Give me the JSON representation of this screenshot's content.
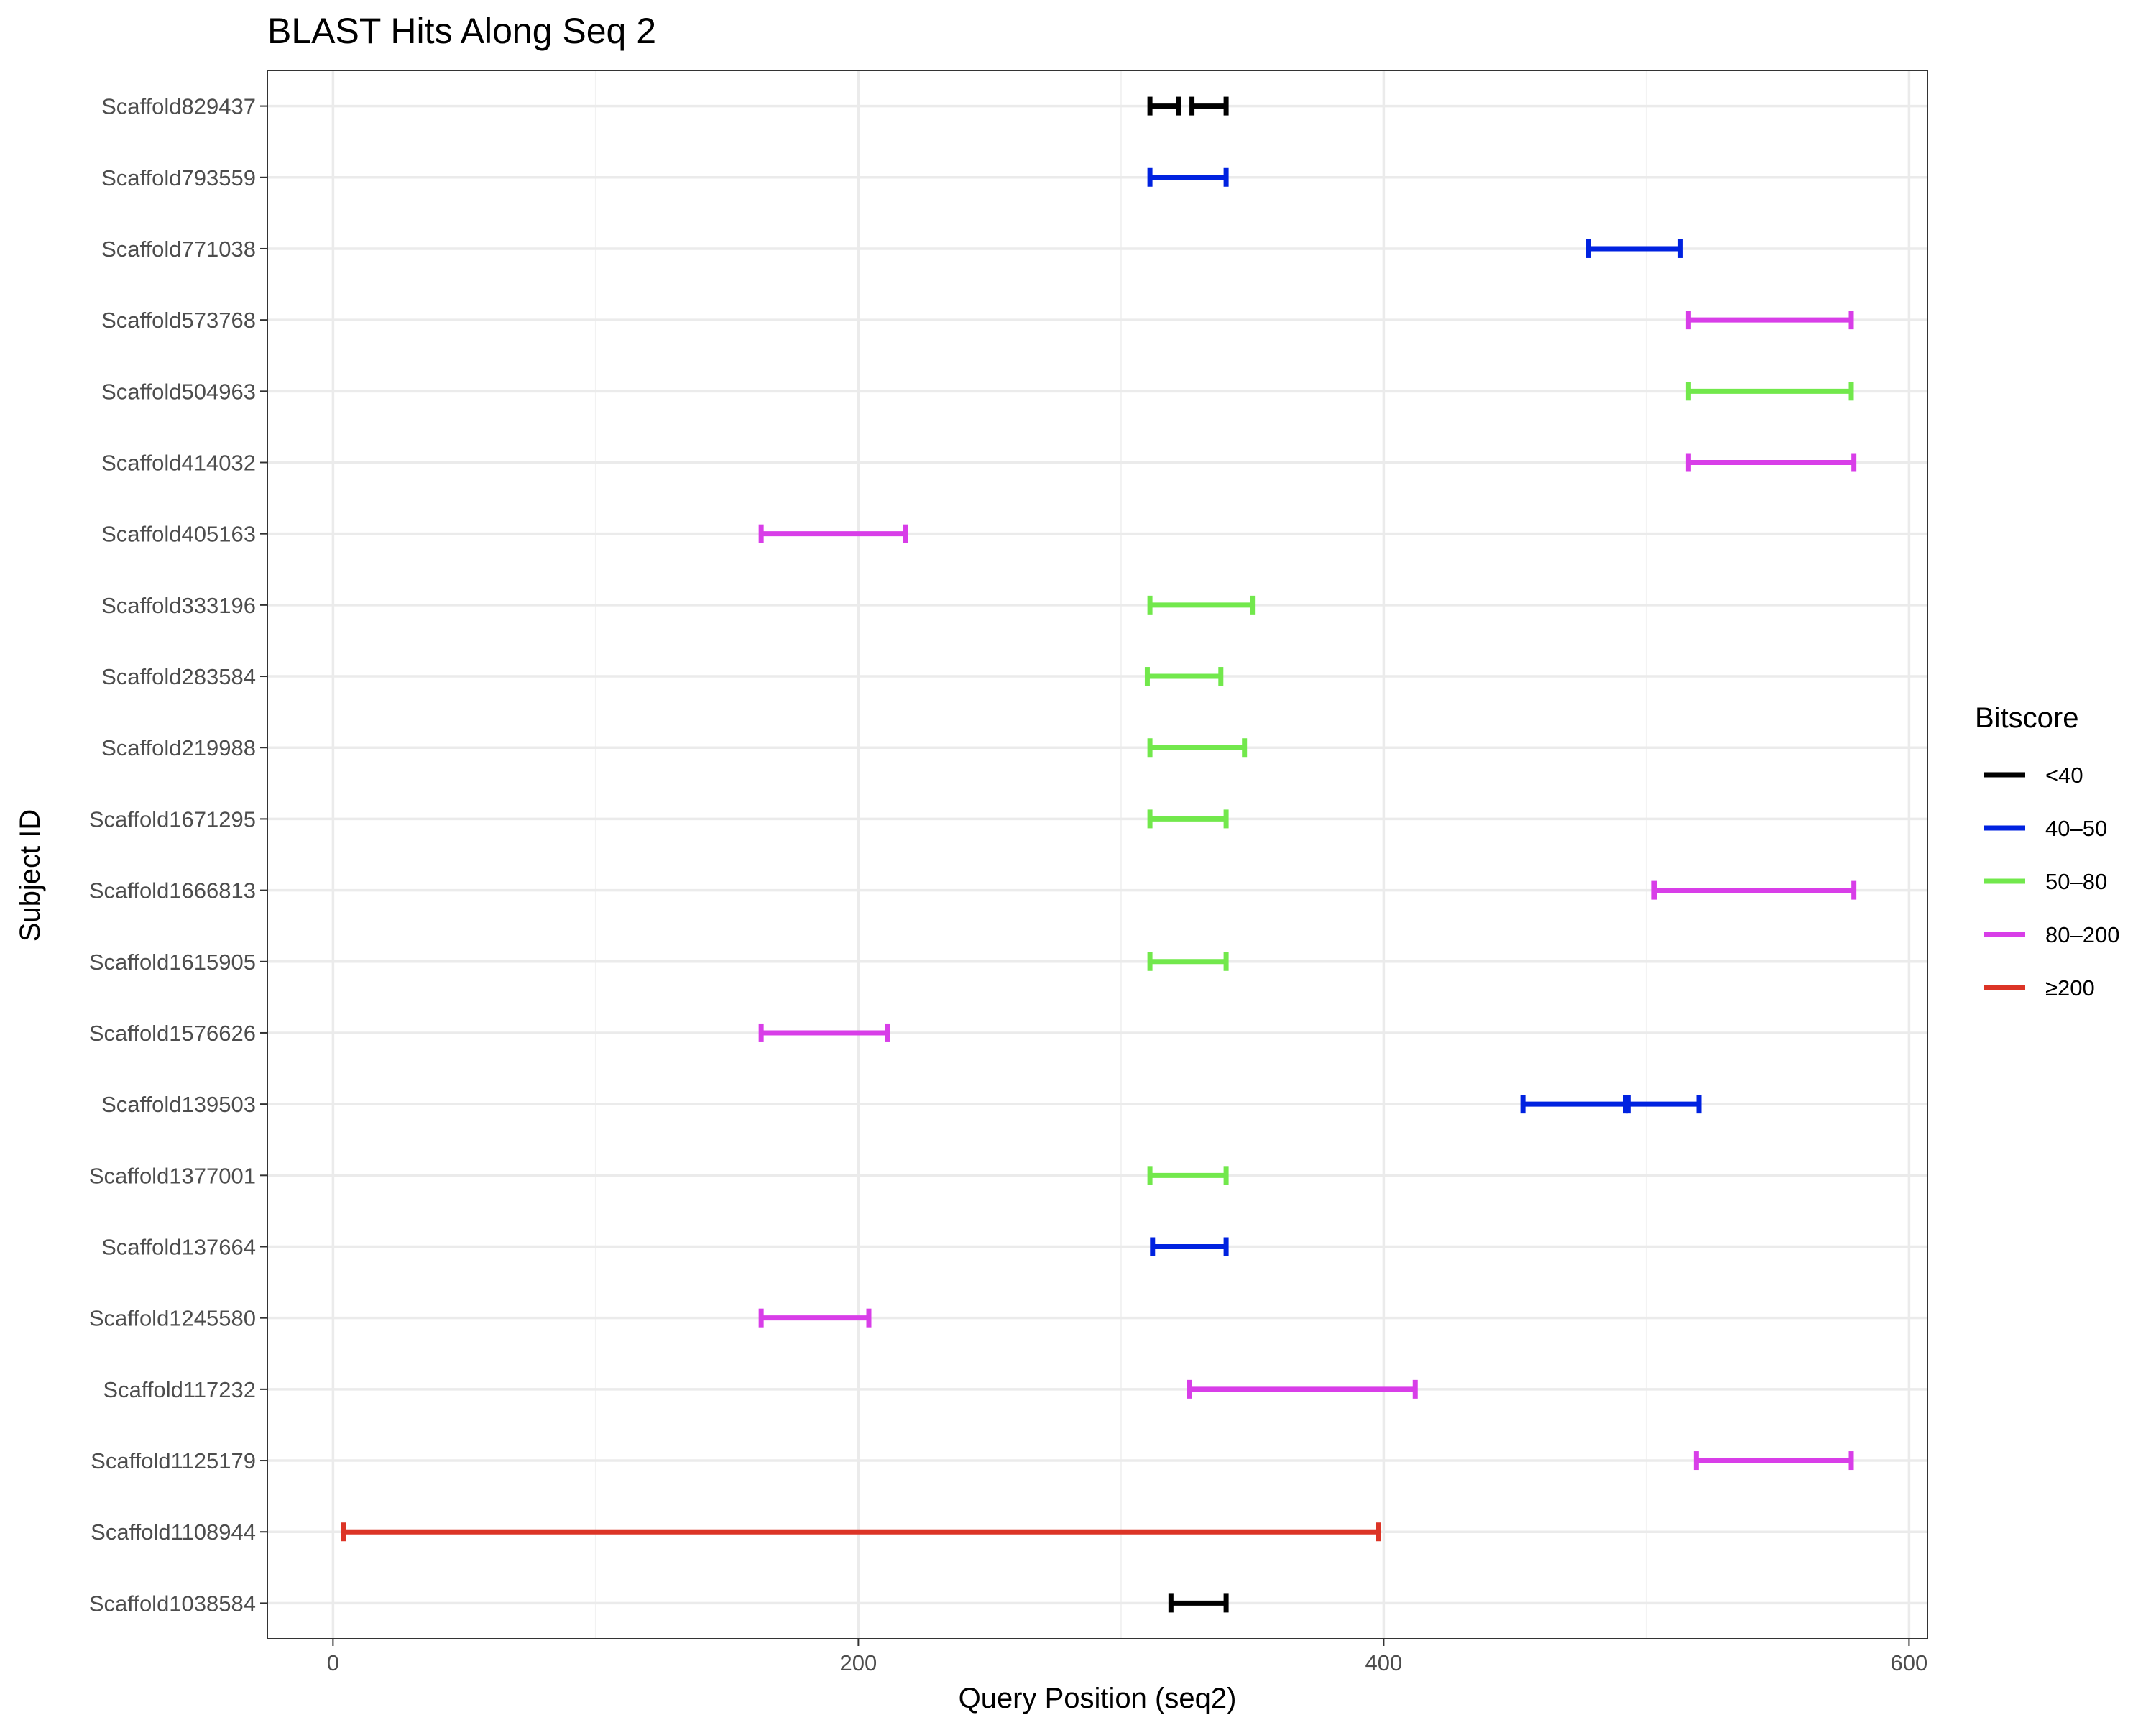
{
  "chart_data": {
    "type": "segment",
    "title": "BLAST Hits Along Seq 2",
    "xlabel": "Query Position (seq2)",
    "ylabel": "Subject ID",
    "xlim": [
      -25,
      607
    ],
    "x_ticks": [
      0,
      200,
      400,
      600
    ],
    "grid": true,
    "legend": {
      "title": "Bitscore",
      "placement": "right",
      "entries": [
        {
          "label": "<40",
          "color": "#000000"
        },
        {
          "label": "40–50",
          "color": "#0022e0"
        },
        {
          "label": "50–80",
          "color": "#72e84c"
        },
        {
          "label": "80–200",
          "color": "#d83ee8"
        },
        {
          "label": "≥200",
          "color": "#dc3426"
        }
      ]
    },
    "categories": [
      "Scaffold829437",
      "Scaffold793559",
      "Scaffold771038",
      "Scaffold573768",
      "Scaffold504963",
      "Scaffold414032",
      "Scaffold405163",
      "Scaffold333196",
      "Scaffold283584",
      "Scaffold219988",
      "Scaffold1671295",
      "Scaffold1666813",
      "Scaffold1615905",
      "Scaffold1576626",
      "Scaffold139503",
      "Scaffold1377001",
      "Scaffold137664",
      "Scaffold1245580",
      "Scaffold117232",
      "Scaffold1125179",
      "Scaffold1108944",
      "Scaffold1038584"
    ],
    "segments": [
      {
        "subject": "Scaffold829437",
        "start": 311,
        "end": 322,
        "bitscore": "<40"
      },
      {
        "subject": "Scaffold829437",
        "start": 327,
        "end": 340,
        "bitscore": "<40"
      },
      {
        "subject": "Scaffold793559",
        "start": 311,
        "end": 340,
        "bitscore": "40–50"
      },
      {
        "subject": "Scaffold771038",
        "start": 478,
        "end": 513,
        "bitscore": "40–50"
      },
      {
        "subject": "Scaffold573768",
        "start": 516,
        "end": 578,
        "bitscore": "80–200"
      },
      {
        "subject": "Scaffold504963",
        "start": 516,
        "end": 578,
        "bitscore": "50–80"
      },
      {
        "subject": "Scaffold414032",
        "start": 516,
        "end": 579,
        "bitscore": "80–200"
      },
      {
        "subject": "Scaffold405163",
        "start": 163,
        "end": 218,
        "bitscore": "80–200"
      },
      {
        "subject": "Scaffold333196",
        "start": 311,
        "end": 350,
        "bitscore": "50–80"
      },
      {
        "subject": "Scaffold283584",
        "start": 310,
        "end": 338,
        "bitscore": "50–80"
      },
      {
        "subject": "Scaffold219988",
        "start": 311,
        "end": 347,
        "bitscore": "50–80"
      },
      {
        "subject": "Scaffold1671295",
        "start": 311,
        "end": 340,
        "bitscore": "50–80"
      },
      {
        "subject": "Scaffold1666813",
        "start": 503,
        "end": 579,
        "bitscore": "80–200"
      },
      {
        "subject": "Scaffold1615905",
        "start": 311,
        "end": 340,
        "bitscore": "50–80"
      },
      {
        "subject": "Scaffold1576626",
        "start": 163,
        "end": 211,
        "bitscore": "80–200"
      },
      {
        "subject": "Scaffold139503",
        "start": 453,
        "end": 492,
        "bitscore": "40–50"
      },
      {
        "subject": "Scaffold139503",
        "start": 493,
        "end": 520,
        "bitscore": "40–50"
      },
      {
        "subject": "Scaffold1377001",
        "start": 311,
        "end": 340,
        "bitscore": "50–80"
      },
      {
        "subject": "Scaffold137664",
        "start": 312,
        "end": 340,
        "bitscore": "40–50"
      },
      {
        "subject": "Scaffold1245580",
        "start": 163,
        "end": 204,
        "bitscore": "80–200"
      },
      {
        "subject": "Scaffold117232",
        "start": 326,
        "end": 412,
        "bitscore": "80–200"
      },
      {
        "subject": "Scaffold1125179",
        "start": 519,
        "end": 578,
        "bitscore": "80–200"
      },
      {
        "subject": "Scaffold1108944",
        "start": 4,
        "end": 398,
        "bitscore": "≥200"
      },
      {
        "subject": "Scaffold1038584",
        "start": 319,
        "end": 340,
        "bitscore": "<40"
      }
    ]
  }
}
